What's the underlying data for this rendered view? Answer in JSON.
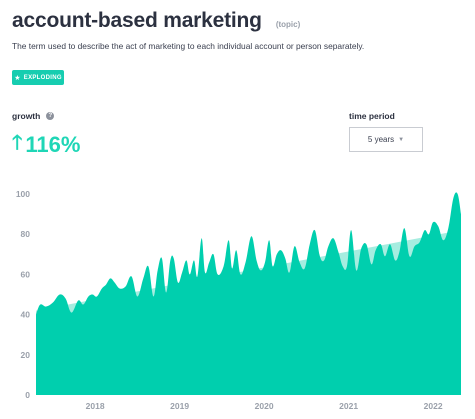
{
  "header": {
    "title": "account-based marketing",
    "tag": "(topic)",
    "description": "The term used to describe the act of marketing to each individual account or person separately.",
    "badge": "EXPLODING",
    "badge_icon": "star-icon"
  },
  "growth": {
    "label": "growth",
    "info_icon": "info-icon",
    "value": "116%",
    "arrow_icon": "up-arrow-icon",
    "color": "#1fd6b6"
  },
  "time_period": {
    "label": "time period",
    "selected": "5 years"
  },
  "colors": {
    "area": "#00cfae",
    "trend": "#a6ede0"
  },
  "chart_data": {
    "type": "area",
    "ylim": [
      0,
      100
    ],
    "yticks": [
      "0",
      "20",
      "40",
      "60",
      "80",
      "100"
    ],
    "xticks": [
      {
        "label": "2018",
        "x": 2018.0
      },
      {
        "label": "2019",
        "x": 2019.0
      },
      {
        "label": "2020",
        "x": 2020.0
      },
      {
        "label": "2021",
        "x": 2021.0
      },
      {
        "label": "2022",
        "x": 2022.0
      }
    ],
    "xlim": [
      2017.3,
      2022.33
    ],
    "series": [
      {
        "x": [
          2017.3,
          2017.35,
          2017.42,
          2017.5,
          2017.58,
          2017.65,
          2017.72,
          2017.8,
          2017.86,
          2017.92,
          2017.97,
          2018.02,
          2018.08,
          2018.13,
          2018.18,
          2018.23,
          2018.29,
          2018.36,
          2018.43,
          2018.5,
          2018.57,
          2018.63,
          2018.69,
          2018.74,
          2018.79,
          2018.84,
          2018.89,
          2018.93,
          2018.98,
          2019.03,
          2019.08,
          2019.12,
          2019.17,
          2019.21,
          2019.26,
          2019.3,
          2019.35,
          2019.4,
          2019.45,
          2019.52,
          2019.58,
          2019.62,
          2019.67,
          2019.72,
          2019.78,
          2019.85,
          2019.91,
          2019.96,
          2020.01,
          2020.06,
          2020.1,
          2020.15,
          2020.2,
          2020.25,
          2020.3,
          2020.36,
          2020.42,
          2020.48,
          2020.54,
          2020.6,
          2020.66,
          2020.71,
          2020.76,
          2020.82,
          2020.88,
          2020.93,
          2020.98,
          2021.03,
          2021.09,
          2021.15,
          2021.21,
          2021.27,
          2021.32,
          2021.38,
          2021.43,
          2021.49,
          2021.55,
          2021.6,
          2021.66,
          2021.72,
          2021.78,
          2021.84,
          2021.9,
          2021.95,
          2022.0,
          2022.06,
          2022.12,
          2022.18,
          2022.24,
          2022.29,
          2022.33
        ],
        "values": [
          40,
          45,
          44,
          46,
          50,
          48,
          41,
          47,
          45,
          49,
          50,
          49,
          53,
          55,
          58,
          56,
          53,
          54,
          59,
          49,
          58,
          64,
          49,
          62,
          68,
          51,
          67,
          68,
          56,
          61,
          67,
          60,
          67,
          59,
          78,
          61,
          66,
          70,
          60,
          64,
          77,
          63,
          72,
          60,
          66,
          79,
          67,
          62,
          66,
          77,
          64,
          70,
          72,
          68,
          61,
          74,
          66,
          63,
          75,
          82,
          69,
          67,
          74,
          78,
          71,
          64,
          64,
          82,
          62,
          73,
          75,
          65,
          72,
          75,
          69,
          75,
          67,
          71,
          83,
          69,
          74,
          76,
          82,
          80,
          86,
          84,
          77,
          83,
          98,
          100,
          90
        ]
      },
      {
        "name": "",
        "x": [
          2017.3,
          2022.33
        ],
        "values": [
          42,
          82
        ]
      }
    ]
  }
}
